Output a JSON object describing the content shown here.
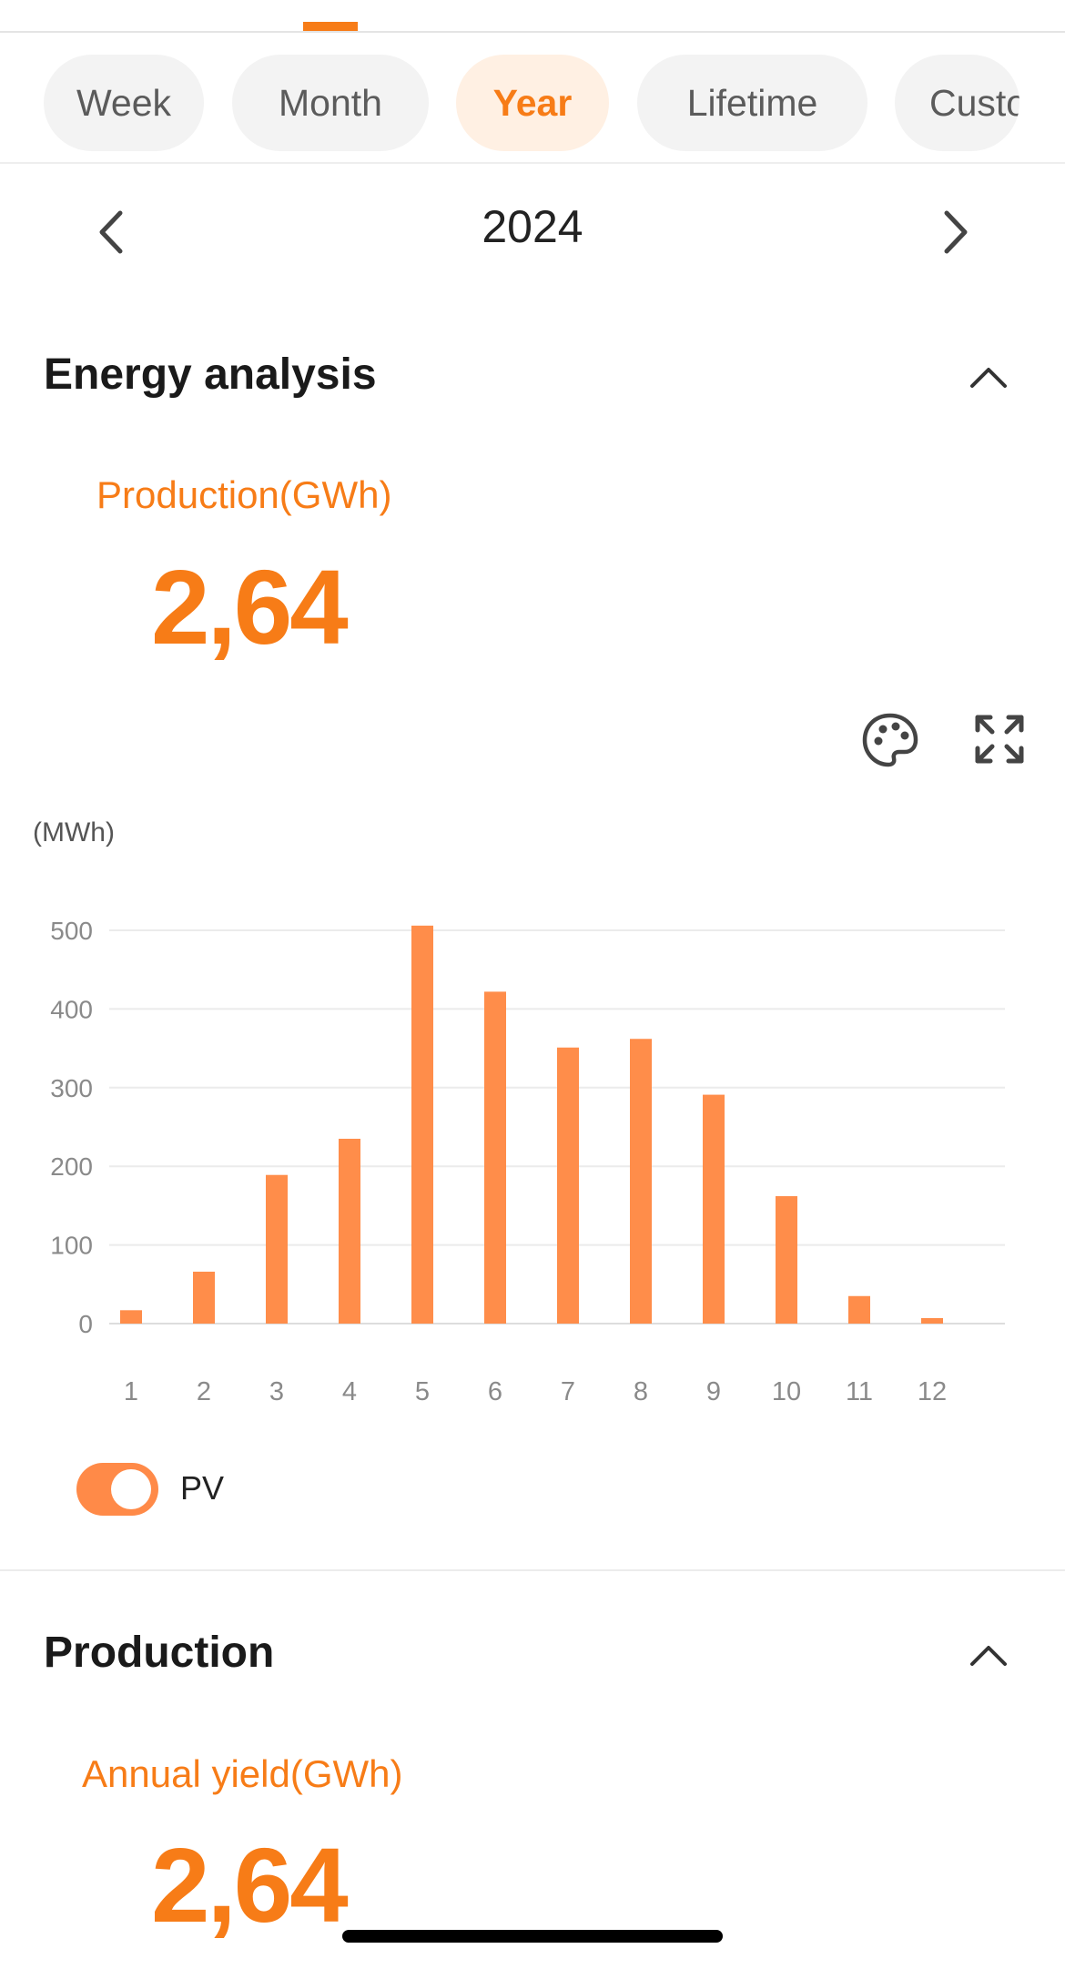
{
  "tabs": [
    {
      "label": "Week",
      "active": false
    },
    {
      "label": "Month",
      "active": false
    },
    {
      "label": "Year",
      "active": true
    },
    {
      "label": "Lifetime",
      "active": false
    },
    {
      "label": "Custom",
      "active": false
    }
  ],
  "period": {
    "label": "2024",
    "prev_icon": "chevron-left-icon",
    "next_icon": "chevron-right-icon"
  },
  "energy_analysis": {
    "title": "Energy analysis",
    "metric_label": "Production(GWh)",
    "metric_value": "2,64"
  },
  "toolbar": {
    "palette_icon": "palette-icon",
    "fullscreen_icon": "fullscreen-icon"
  },
  "chart_data": {
    "type": "bar",
    "unit_label": "(MWh)",
    "categories": [
      "1",
      "2",
      "3",
      "4",
      "5",
      "6",
      "7",
      "8",
      "9",
      "10",
      "11",
      "12"
    ],
    "series": [
      {
        "name": "PV",
        "color": "#ff8d4a",
        "values": [
          17,
          66,
          189,
          235,
          506,
          422,
          351,
          362,
          291,
          162,
          35,
          7
        ]
      }
    ],
    "yticks": [
      0,
      100,
      200,
      300,
      400,
      500
    ],
    "ylim": [
      0,
      500
    ],
    "grid": true,
    "legend": {
      "label": "PV",
      "enabled": true
    }
  },
  "production": {
    "title": "Production",
    "metric_label": "Annual yield(GWh)",
    "metric_value": "2,64"
  },
  "colors": {
    "accent": "#f77c17",
    "bar": "#ff8d4a",
    "tab_active_bg": "#fff0e3"
  }
}
